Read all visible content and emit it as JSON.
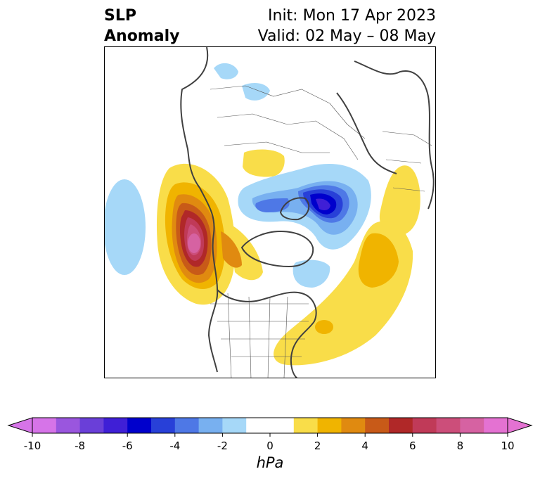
{
  "title": {
    "left_line1": "SLP",
    "left_line2": "Anomaly",
    "right_line1": "Init: Mon 17 Apr 2023",
    "right_line2": "Valid: 02 May – 08 May"
  },
  "colorbar": {
    "unit": "hPa",
    "ticks": [
      "-10",
      "-8",
      "-6",
      "-4",
      "-2",
      "0",
      "2",
      "4",
      "6",
      "8",
      "10"
    ],
    "tick_values": [
      -10,
      -8,
      -6,
      -4,
      -2,
      0,
      2,
      4,
      6,
      8,
      10
    ],
    "range": [
      -10,
      10
    ],
    "extend": "both",
    "colors": [
      "#d674e8",
      "#9a56de",
      "#6a3fd8",
      "#3f1fd6",
      "#0000cc",
      "#2840d8",
      "#4e78e6",
      "#78b0f0",
      "#a6d8f8",
      "#ffffff",
      "#ffffff",
      "#f9dd49",
      "#f0b400",
      "#e08a10",
      "#c85a18",
      "#b02828",
      "#c03a58",
      "#cc4e7a",
      "#d662a2",
      "#e472d2"
    ],
    "under_color": "#d674e8",
    "over_color": "#e472d2"
  },
  "map": {
    "projection": "north-polar-stereographic",
    "variable": "sea level pressure anomaly",
    "features": [
      {
        "name": "positive anomaly off North American west coast",
        "peak_hPa": 10
      },
      {
        "name": "negative anomaly near Greenland / Barents Sea",
        "peak_hPa": -6
      },
      {
        "name": "positive anomaly over North Atlantic",
        "peak_hPa": 4
      },
      {
        "name": "positive anomaly over Siberia",
        "peak_hPa": 2
      },
      {
        "name": "negative anomaly over central Pacific",
        "peak_hPa": -2
      }
    ]
  }
}
